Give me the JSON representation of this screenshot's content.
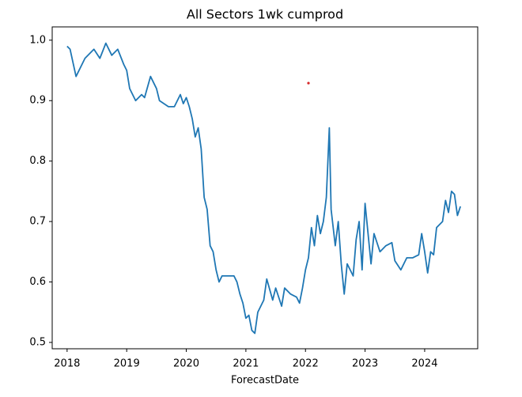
{
  "chart_data": {
    "type": "line",
    "title": "All Sectors 1wk cumprod",
    "x_label": "ForecastDate",
    "xlim": [
      2017.75,
      2024.89
    ],
    "xticks": [
      2018,
      2019,
      2020,
      2021,
      2022,
      2023,
      2024
    ],
    "ylim": [
      0.4895,
      1.022
    ],
    "yticks": [
      0.5,
      0.6,
      0.7,
      0.8,
      0.9,
      {
        "value": 1,
        "label": "1.0"
      }
    ],
    "grid": false,
    "series": [
      {
        "type": "line",
        "color": "#1f77b4",
        "x": [
          2018.0,
          2018.05,
          2018.15,
          2018.3,
          2018.45,
          2018.55,
          2018.65,
          2018.75,
          2018.85,
          2018.95,
          2019.0,
          2019.05,
          2019.1,
          2019.15,
          2019.25,
          2019.3,
          2019.4,
          2019.5,
          2019.55,
          2019.7,
          2019.8,
          2019.9,
          2019.95,
          2020.0,
          2020.05,
          2020.1,
          2020.15,
          2020.2,
          2020.25,
          2020.3,
          2020.35,
          2020.4,
          2020.45,
          2020.5,
          2020.55,
          2020.6,
          2020.7,
          2020.8,
          2020.85,
          2020.9,
          2020.95,
          2021.0,
          2021.05,
          2021.1,
          2021.15,
          2021.2,
          2021.3,
          2021.35,
          2021.45,
          2021.5,
          2021.6,
          2021.65,
          2021.75,
          2021.85,
          2021.9,
          2021.95,
          2022.0,
          2022.05,
          2022.1,
          2022.15,
          2022.2,
          2022.25,
          2022.3,
          2022.35,
          2022.4,
          2022.43,
          2022.5,
          2022.55,
          2022.6,
          2022.65,
          2022.7,
          2022.8,
          2022.85,
          2022.9,
          2022.95,
          2023.0,
          2023.05,
          2023.1,
          2023.15,
          2023.25,
          2023.35,
          2023.45,
          2023.5,
          2023.6,
          2023.7,
          2023.8,
          2023.9,
          2023.95,
          2024.0,
          2024.05,
          2024.1,
          2024.15,
          2024.2,
          2024.3,
          2024.35,
          2024.4,
          2024.45,
          2024.5,
          2024.55,
          2024.6
        ],
        "values": [
          0.99,
          0.985,
          0.94,
          0.97,
          0.985,
          0.97,
          0.995,
          0.975,
          0.985,
          0.96,
          0.95,
          0.92,
          0.91,
          0.9,
          0.91,
          0.905,
          0.94,
          0.92,
          0.9,
          0.89,
          0.89,
          0.91,
          0.895,
          0.905,
          0.89,
          0.87,
          0.84,
          0.855,
          0.82,
          0.74,
          0.72,
          0.66,
          0.65,
          0.62,
          0.6,
          0.61,
          0.61,
          0.61,
          0.6,
          0.58,
          0.565,
          0.54,
          0.545,
          0.52,
          0.515,
          0.55,
          0.57,
          0.605,
          0.57,
          0.59,
          0.56,
          0.59,
          0.58,
          0.575,
          0.565,
          0.59,
          0.62,
          0.64,
          0.69,
          0.66,
          0.71,
          0.68,
          0.7,
          0.74,
          0.855,
          0.72,
          0.66,
          0.7,
          0.63,
          0.58,
          0.63,
          0.61,
          0.67,
          0.7,
          0.62,
          0.73,
          0.68,
          0.63,
          0.68,
          0.65,
          0.66,
          0.665,
          0.635,
          0.62,
          0.64,
          0.64,
          0.645,
          0.68,
          0.65,
          0.615,
          0.65,
          0.645,
          0.69,
          0.7,
          0.735,
          0.715,
          0.75,
          0.745,
          0.71,
          0.725
        ]
      },
      {
        "type": "scatter",
        "color": "#d62728",
        "x": [
          2022.05
        ],
        "values": [
          0.929
        ]
      }
    ]
  }
}
